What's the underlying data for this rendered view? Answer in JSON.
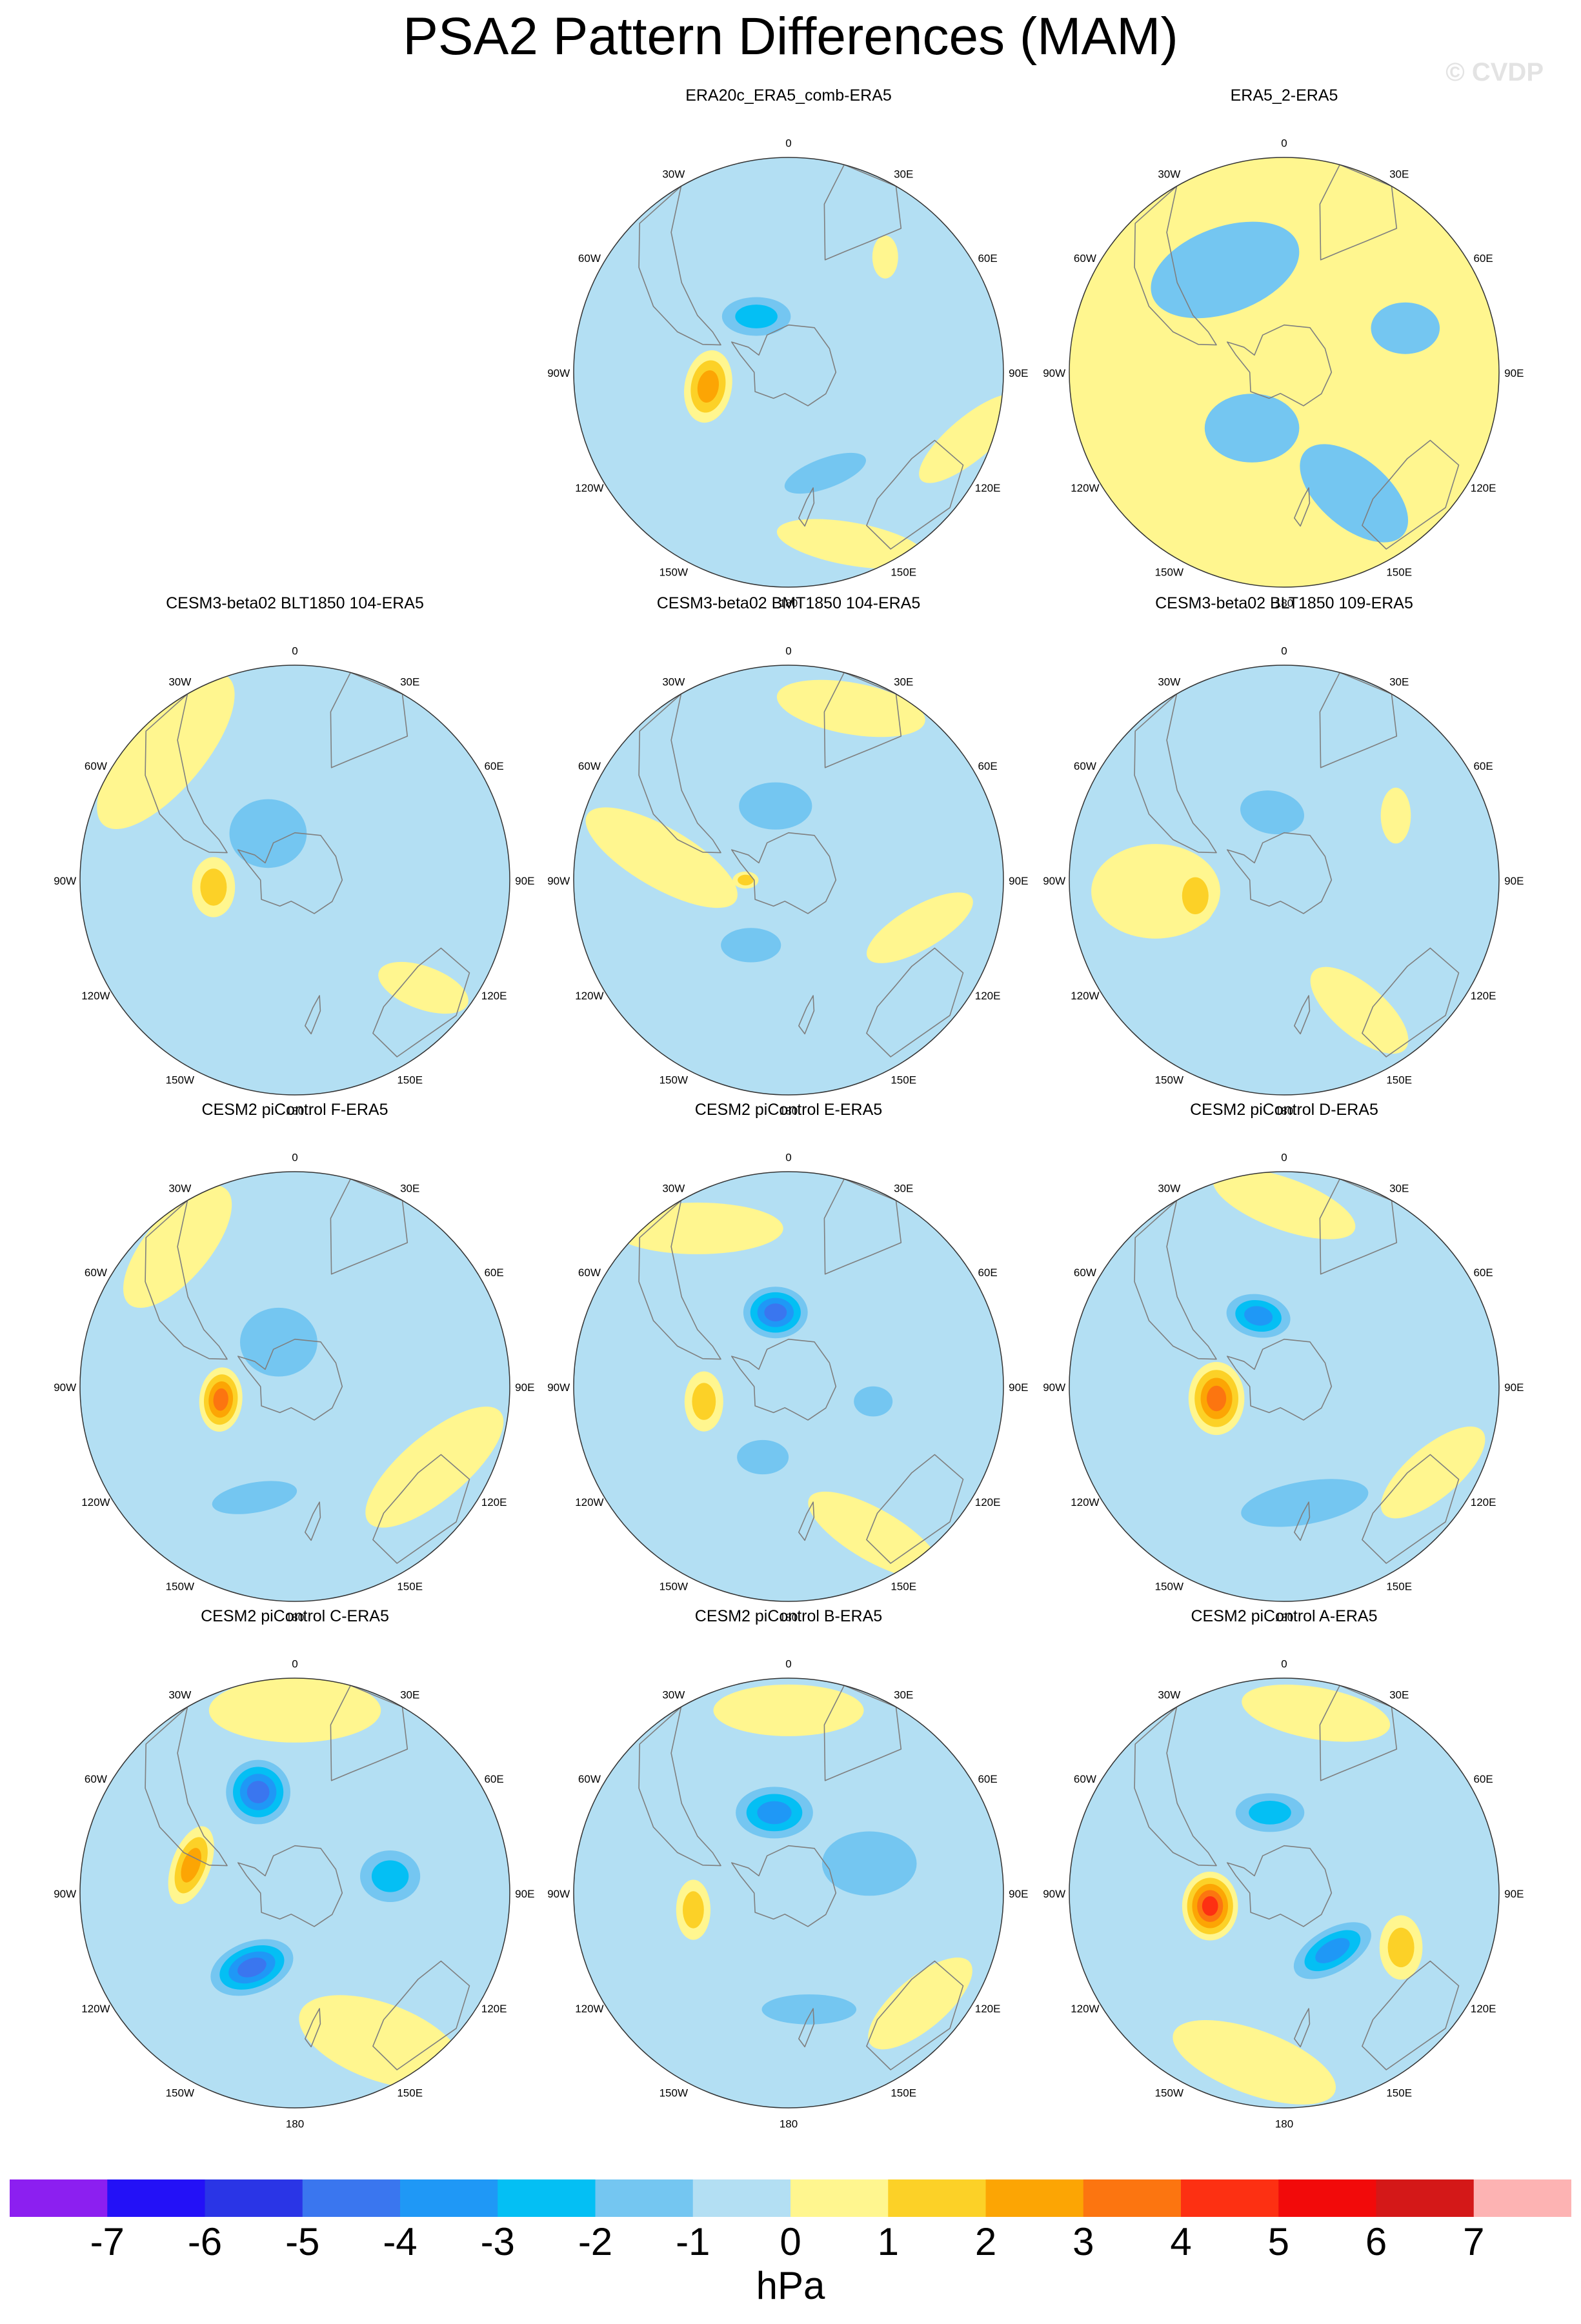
{
  "title": "PSA2 Pattern Differences (MAM)",
  "watermark": "© CVDP",
  "lon_labels": [
    "0",
    "30E",
    "60E",
    "90E",
    "120E",
    "150E",
    "180",
    "150W",
    "120W",
    "90W",
    "60W",
    "30W"
  ],
  "colors": {
    "land_outline": "#7f7f7f",
    "map_border": "#333333"
  },
  "panels": [
    {
      "title": "ERA20c_ERA5_comb-ERA5",
      "shade": "#b3dff3",
      "blobs": [
        {
          "lon": -100,
          "r": 0.38,
          "a": 0.11,
          "b": 0.17,
          "rot": 10,
          "v": 3
        },
        {
          "lon": -30,
          "r": 0.3,
          "a": 0.16,
          "b": 0.09,
          "rot": 0,
          "v": -2
        },
        {
          "lon": 160,
          "r": 0.5,
          "a": 0.2,
          "b": 0.07,
          "rot": -20,
          "v": -1
        },
        {
          "lon": 160,
          "r": 0.85,
          "a": 0.35,
          "b": 0.1,
          "rot": 10,
          "v": 1
        },
        {
          "lon": 110,
          "r": 0.9,
          "a": 0.3,
          "b": 0.1,
          "rot": -40,
          "v": 1
        },
        {
          "lon": 40,
          "r": 0.7,
          "a": 0.06,
          "b": 0.1,
          "rot": 0,
          "v": 1
        }
      ]
    },
    {
      "title": "ERA5_2-ERA5",
      "shade": "#fff68f",
      "blobs": [
        {
          "lon": -30,
          "r": 0.55,
          "a": 0.36,
          "b": 0.2,
          "rot": -20,
          "v": -1
        },
        {
          "lon": -150,
          "r": 0.3,
          "a": 0.22,
          "b": 0.16,
          "rot": 0,
          "v": -1
        },
        {
          "lon": 150,
          "r": 0.65,
          "a": 0.3,
          "b": 0.16,
          "rot": 40,
          "v": -1
        },
        {
          "lon": 70,
          "r": 0.6,
          "a": 0.16,
          "b": 0.12,
          "rot": 0,
          "v": -1
        }
      ]
    },
    {
      "title": "CESM3-beta02 BLT1850 104-ERA5",
      "shade": "#b3dff3",
      "blobs": [
        {
          "lon": -95,
          "r": 0.38,
          "a": 0.1,
          "b": 0.14,
          "rot": 0,
          "v": 2
        },
        {
          "lon": -30,
          "r": 0.25,
          "a": 0.18,
          "b": 0.16,
          "rot": 0,
          "v": -1
        },
        {
          "lon": -45,
          "r": 0.85,
          "a": 0.45,
          "b": 0.18,
          "rot": -50,
          "v": 1
        },
        {
          "lon": 130,
          "r": 0.78,
          "a": 0.22,
          "b": 0.1,
          "rot": 20,
          "v": 1
        }
      ]
    },
    {
      "title": "CESM3-beta02 BMT1850 104-ERA5",
      "shade": "#b3dff3",
      "blobs": [
        {
          "lon": -10,
          "r": 0.35,
          "a": 0.17,
          "b": 0.11,
          "rot": 0,
          "v": -1
        },
        {
          "lon": -90,
          "r": 0.2,
          "a": 0.06,
          "b": 0.04,
          "rot": 0,
          "v": 2
        },
        {
          "lon": -150,
          "r": 0.35,
          "a": 0.14,
          "b": 0.08,
          "rot": 0,
          "v": -1
        },
        {
          "lon": -80,
          "r": 0.6,
          "a": 0.4,
          "b": 0.14,
          "rot": 30,
          "v": 1
        },
        {
          "lon": 110,
          "r": 0.65,
          "a": 0.28,
          "b": 0.1,
          "rot": -30,
          "v": 1
        },
        {
          "lon": 20,
          "r": 0.85,
          "a": 0.35,
          "b": 0.12,
          "rot": 10,
          "v": 1
        }
      ]
    },
    {
      "title": "CESM3-beta02 BLT1850 109-ERA5",
      "shade": "#b3dff3",
      "blobs": [
        {
          "lon": -100,
          "r": 0.42,
          "a": 0.1,
          "b": 0.14,
          "rot": 0,
          "v": 2
        },
        {
          "lon": -10,
          "r": 0.32,
          "a": 0.15,
          "b": 0.1,
          "rot": 10,
          "v": -1
        },
        {
          "lon": -95,
          "r": 0.6,
          "a": 0.3,
          "b": 0.22,
          "rot": 0,
          "v": 1
        },
        {
          "lon": 150,
          "r": 0.7,
          "a": 0.28,
          "b": 0.12,
          "rot": 40,
          "v": 1
        },
        {
          "lon": 60,
          "r": 0.6,
          "a": 0.07,
          "b": 0.13,
          "rot": 0,
          "v": 1
        }
      ]
    },
    {
      "title": "CESM2 piControl F-ERA5",
      "shade": "#b3dff3",
      "blobs": [
        {
          "lon": -100,
          "r": 0.35,
          "a": 0.1,
          "b": 0.15,
          "rot": 5,
          "v": 4
        },
        {
          "lon": -20,
          "r": 0.22,
          "a": 0.18,
          "b": 0.16,
          "rot": 0,
          "v": -1
        },
        {
          "lon": -160,
          "r": 0.55,
          "a": 0.2,
          "b": 0.07,
          "rot": -10,
          "v": -1
        },
        {
          "lon": -40,
          "r": 0.85,
          "a": 0.35,
          "b": 0.15,
          "rot": -50,
          "v": 1
        },
        {
          "lon": 120,
          "r": 0.75,
          "a": 0.4,
          "b": 0.15,
          "rot": -40,
          "v": 1
        }
      ]
    },
    {
      "title": "CESM2 piControl E-ERA5",
      "shade": "#b3dff3",
      "blobs": [
        {
          "lon": -10,
          "r": 0.35,
          "a": 0.15,
          "b": 0.12,
          "rot": 0,
          "v": -4
        },
        {
          "lon": -100,
          "r": 0.4,
          "a": 0.09,
          "b": 0.14,
          "rot": 0,
          "v": 2
        },
        {
          "lon": 100,
          "r": 0.4,
          "a": 0.09,
          "b": 0.07,
          "rot": 0,
          "v": -1
        },
        {
          "lon": -160,
          "r": 0.35,
          "a": 0.12,
          "b": 0.08,
          "rot": 0,
          "v": -1
        },
        {
          "lon": -30,
          "r": 0.85,
          "a": 0.4,
          "b": 0.12,
          "rot": 0,
          "v": 1
        },
        {
          "lon": 150,
          "r": 0.8,
          "a": 0.35,
          "b": 0.12,
          "rot": 30,
          "v": 1
        }
      ]
    },
    {
      "title": "CESM2 piControl D-ERA5",
      "shade": "#b3dff3",
      "blobs": [
        {
          "lon": -100,
          "r": 0.32,
          "a": 0.13,
          "b": 0.17,
          "rot": 0,
          "v": 4
        },
        {
          "lon": -20,
          "r": 0.35,
          "a": 0.15,
          "b": 0.1,
          "rot": 10,
          "v": -3
        },
        {
          "lon": 170,
          "r": 0.55,
          "a": 0.3,
          "b": 0.1,
          "rot": -10,
          "v": -1
        },
        {
          "lon": 0,
          "r": 0.85,
          "a": 0.35,
          "b": 0.12,
          "rot": 20,
          "v": 1
        },
        {
          "lon": 120,
          "r": 0.8,
          "a": 0.3,
          "b": 0.12,
          "rot": -40,
          "v": 1
        }
      ]
    },
    {
      "title": "CESM2 piControl C-ERA5",
      "shade": "#b3dff3",
      "blobs": [
        {
          "lon": -20,
          "r": 0.5,
          "a": 0.15,
          "b": 0.15,
          "rot": 0,
          "v": -4
        },
        {
          "lon": -150,
          "r": 0.4,
          "a": 0.2,
          "b": 0.12,
          "rot": -20,
          "v": -4
        },
        {
          "lon": -75,
          "r": 0.5,
          "a": 0.09,
          "b": 0.19,
          "rot": 20,
          "v": 3
        },
        {
          "lon": 80,
          "r": 0.45,
          "a": 0.14,
          "b": 0.12,
          "rot": 0,
          "v": -2
        },
        {
          "lon": 0,
          "r": 0.85,
          "a": 0.4,
          "b": 0.15,
          "rot": 0,
          "v": 1
        },
        {
          "lon": 150,
          "r": 0.8,
          "a": 0.4,
          "b": 0.18,
          "rot": 20,
          "v": 1
        }
      ]
    },
    {
      "title": "CESM2 piControl B-ERA5",
      "shade": "#b3dff3",
      "blobs": [
        {
          "lon": -10,
          "r": 0.38,
          "a": 0.18,
          "b": 0.12,
          "rot": 0,
          "v": -3
        },
        {
          "lon": -100,
          "r": 0.45,
          "a": 0.08,
          "b": 0.14,
          "rot": 0,
          "v": 2
        },
        {
          "lon": 70,
          "r": 0.4,
          "a": 0.22,
          "b": 0.15,
          "rot": 0,
          "v": -1
        },
        {
          "lon": 170,
          "r": 0.55,
          "a": 0.22,
          "b": 0.07,
          "rot": 0,
          "v": -1
        },
        {
          "lon": 0,
          "r": 0.85,
          "a": 0.35,
          "b": 0.12,
          "rot": 0,
          "v": 1
        },
        {
          "lon": 130,
          "r": 0.8,
          "a": 0.3,
          "b": 0.12,
          "rot": -40,
          "v": 1
        }
      ]
    },
    {
      "title": "CESM2 piControl A-ERA5",
      "shade": "#b3dff3",
      "blobs": [
        {
          "lon": -100,
          "r": 0.35,
          "a": 0.13,
          "b": 0.16,
          "rot": 0,
          "v": 5
        },
        {
          "lon": -10,
          "r": 0.38,
          "a": 0.16,
          "b": 0.09,
          "rot": 0,
          "v": -2
        },
        {
          "lon": 140,
          "r": 0.35,
          "a": 0.2,
          "b": 0.1,
          "rot": -30,
          "v": -3
        },
        {
          "lon": 115,
          "r": 0.6,
          "a": 0.1,
          "b": 0.15,
          "rot": 0,
          "v": 2
        },
        {
          "lon": -170,
          "r": 0.8,
          "a": 0.4,
          "b": 0.15,
          "rot": 20,
          "v": 1
        },
        {
          "lon": 10,
          "r": 0.85,
          "a": 0.35,
          "b": 0.12,
          "rot": 10,
          "v": 1
        }
      ]
    }
  ],
  "colorbar": {
    "units": "hPa",
    "labels": [
      "-7",
      "-6",
      "-5",
      "-4",
      "-3",
      "-2",
      "-1",
      "0",
      "1",
      "2",
      "3",
      "4",
      "5",
      "6",
      "7"
    ],
    "colors": [
      "#8c1ff0",
      "#2311f7",
      "#2a35e6",
      "#3a76ef",
      "#1f98f6",
      "#04bff4",
      "#74c6f1",
      "#b3dff3",
      "#fff68f",
      "#fcd127",
      "#fca504",
      "#fc7510",
      "#fd3012",
      "#f20a0a",
      "#d41818",
      "#fdb3b3"
    ]
  }
}
